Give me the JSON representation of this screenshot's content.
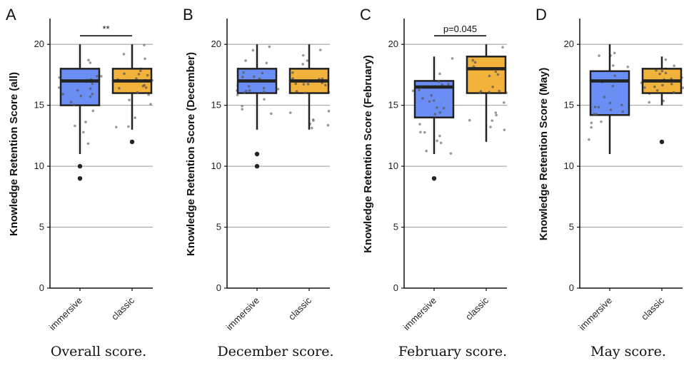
{
  "chart_data": [
    {
      "type": "box",
      "panel": "A",
      "caption": "Overall score.",
      "ylabel": "Knowledge Retention Score (all)",
      "xlabel": "",
      "ylim": [
        0,
        22
      ],
      "y_ticks": [
        0,
        5,
        10,
        15,
        20
      ],
      "grid": "horizontal",
      "categories": [
        "immersive",
        "classic"
      ],
      "colors": [
        "#6b8ef5",
        "#f2b33d"
      ],
      "boxes": [
        {
          "category": "immersive",
          "min": 11,
          "q1": 15,
          "median": 17,
          "q3": 18,
          "max": 20,
          "outliers": [
            10,
            9
          ]
        },
        {
          "category": "classic",
          "min": 13,
          "q1": 16,
          "median": 17,
          "q3": 18,
          "max": 20,
          "outliers": [
            12
          ]
        }
      ],
      "annotation": "**"
    },
    {
      "type": "box",
      "panel": "B",
      "caption": "December score.",
      "ylabel": "Knowledge Retention Score (December)",
      "xlabel": "",
      "ylim": [
        0,
        22
      ],
      "y_ticks": [
        0,
        5,
        10,
        15,
        20
      ],
      "grid": "horizontal",
      "categories": [
        "immersive",
        "classic"
      ],
      "colors": [
        "#6b8ef5",
        "#f2b33d"
      ],
      "boxes": [
        {
          "category": "immersive",
          "min": 13,
          "q1": 16,
          "median": 17,
          "q3": 18,
          "max": 20,
          "outliers": [
            11,
            10
          ]
        },
        {
          "category": "classic",
          "min": 13,
          "q1": 16,
          "median": 17,
          "q3": 18,
          "max": 20,
          "outliers": []
        }
      ],
      "annotation": ""
    },
    {
      "type": "box",
      "panel": "C",
      "caption": "February score.",
      "ylabel": "Knowledge Retention Score (February)",
      "xlabel": "",
      "ylim": [
        0,
        22
      ],
      "y_ticks": [
        0,
        5,
        10,
        15,
        20
      ],
      "grid": "horizontal",
      "categories": [
        "immersive",
        "classic"
      ],
      "colors": [
        "#6b8ef5",
        "#f2b33d"
      ],
      "boxes": [
        {
          "category": "immersive",
          "min": 11,
          "q1": 14,
          "median": 16.5,
          "q3": 17,
          "max": 19,
          "outliers": [
            9
          ]
        },
        {
          "category": "classic",
          "min": 12,
          "q1": 16,
          "median": 18,
          "q3": 19,
          "max": 20,
          "outliers": []
        }
      ],
      "annotation": "p=0.045"
    },
    {
      "type": "box",
      "panel": "D",
      "caption": "May score.",
      "ylabel": "Knowledge Retention Score (May)",
      "xlabel": "",
      "ylim": [
        0,
        22
      ],
      "y_ticks": [
        0,
        5,
        10,
        15,
        20
      ],
      "grid": "horizontal",
      "categories": [
        "immersive",
        "classic"
      ],
      "colors": [
        "#6b8ef5",
        "#f2b33d"
      ],
      "boxes": [
        {
          "category": "immersive",
          "min": 11,
          "q1": 14.2,
          "median": 17,
          "q3": 17.8,
          "max": 20,
          "outliers": []
        },
        {
          "category": "classic",
          "min": 15,
          "q1": 16,
          "median": 17,
          "q3": 18,
          "max": 19,
          "outliers": [
            12
          ]
        }
      ],
      "annotation": ""
    }
  ]
}
